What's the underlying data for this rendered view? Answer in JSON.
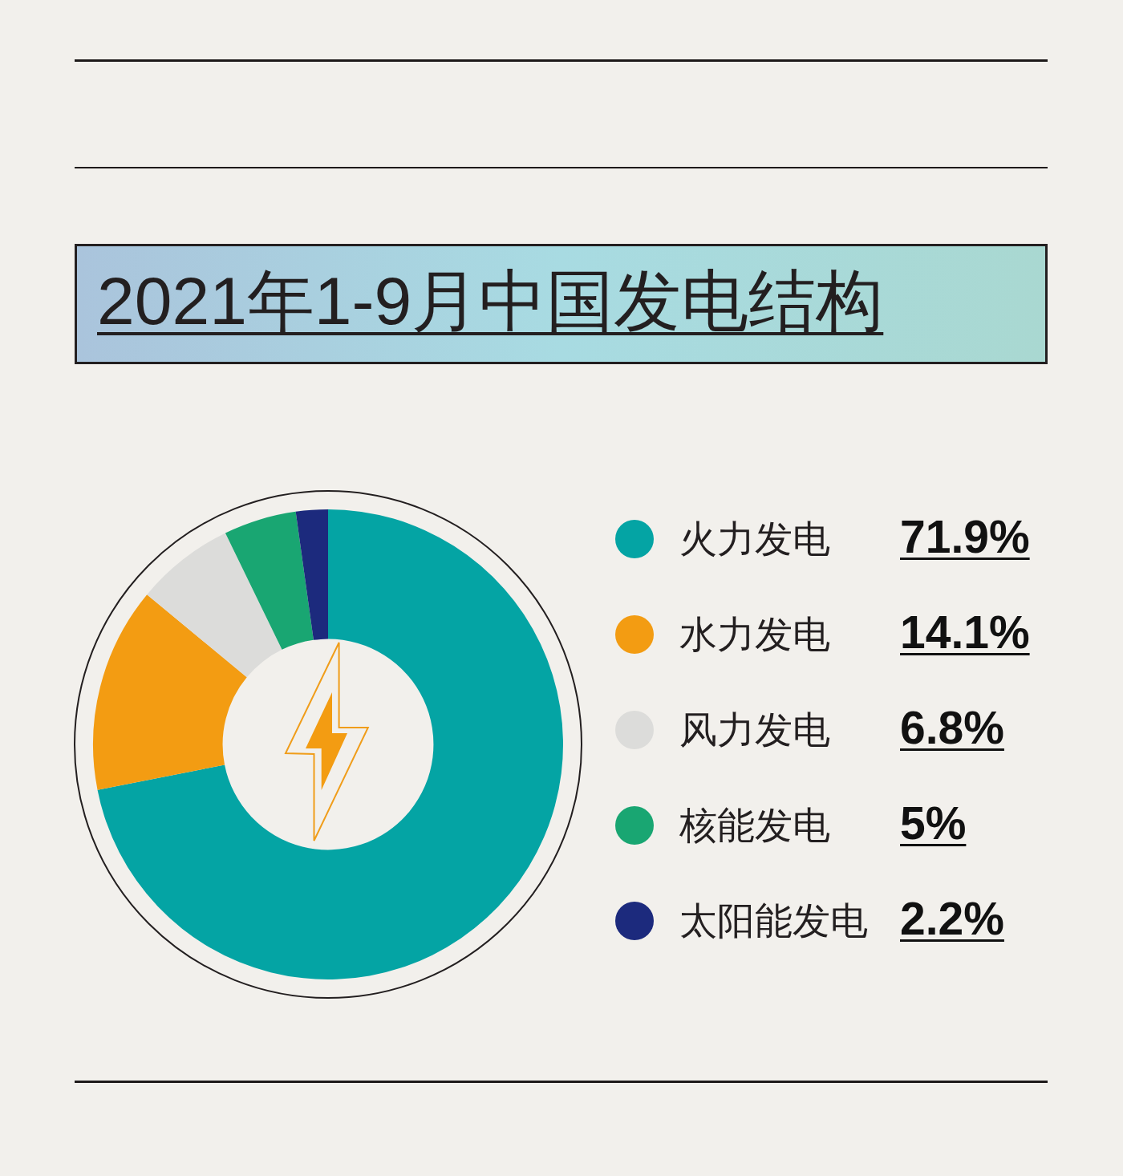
{
  "chart_data": {
    "type": "donut",
    "title": "2021年1-9月中国发电结构",
    "categories": [
      "火力发电",
      "水力发电",
      "风力发电",
      "核能发电",
      "太阳能发电"
    ],
    "values": [
      71.9,
      14.1,
      6.8,
      5,
      2.2
    ],
    "colors": [
      "#04a4a4",
      "#f39c12",
      "#dcdcda",
      "#19a672",
      "#1c2a7d"
    ],
    "value_labels": [
      "71.9%",
      "14.1%",
      "6.8%",
      "5%",
      "2.2%"
    ],
    "legend": "right"
  }
}
